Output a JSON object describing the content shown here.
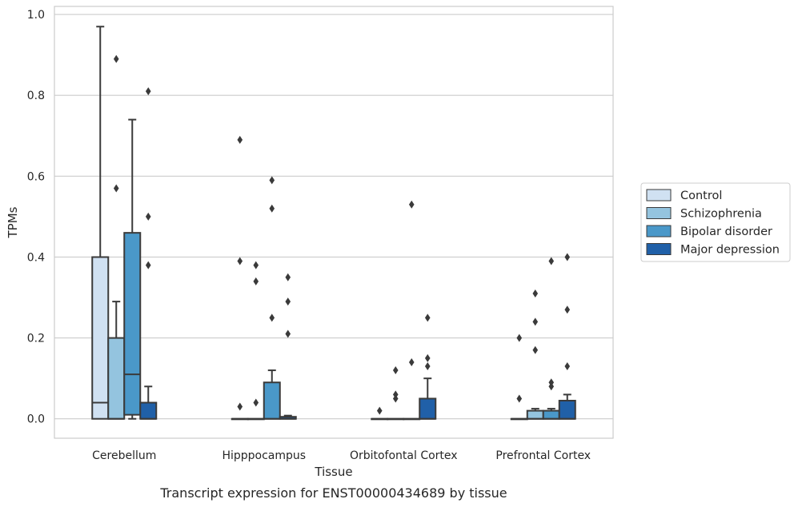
{
  "chart_data": {
    "type": "box",
    "title": "",
    "caption": "Transcript expression for ENST00000434689 by tissue",
    "xlabel": "Tissue",
    "ylabel": "TPMs",
    "ylim": [
      -0.048,
      1.02
    ],
    "yticks": [
      0.0,
      0.2,
      0.4,
      0.6,
      0.8,
      1.0
    ],
    "ytick_labels": [
      "0.0",
      "0.2",
      "0.4",
      "0.6",
      "0.8",
      "1.0"
    ],
    "grid": true,
    "legend_position": "right",
    "categories": [
      "Cerebellum",
      "Hipppocampus",
      "Orbitofontal Cortex",
      "Prefrontal Cortex"
    ],
    "series": [
      {
        "name": "Control",
        "color": "#d0e1f2",
        "boxes": [
          {
            "q1": 0.0,
            "median": 0.04,
            "q3": 0.4,
            "whisker_low": 0.0,
            "whisker_high": 0.97,
            "outliers": []
          },
          {
            "q1": 0.0,
            "median": 0.0,
            "q3": 0.0,
            "whisker_low": 0.0,
            "whisker_high": 0.0,
            "outliers": [
              0.03,
              0.39,
              0.69
            ]
          },
          {
            "q1": 0.0,
            "median": 0.0,
            "q3": 0.0,
            "whisker_low": 0.0,
            "whisker_high": 0.0,
            "outliers": [
              0.02
            ]
          },
          {
            "q1": 0.0,
            "median": 0.0,
            "q3": 0.0,
            "whisker_low": 0.0,
            "whisker_high": 0.0,
            "outliers": [
              0.05,
              0.2
            ]
          }
        ]
      },
      {
        "name": "Schizophrenia",
        "color": "#94c4df",
        "boxes": [
          {
            "q1": 0.0,
            "median": 0.0,
            "q3": 0.2,
            "whisker_low": 0.0,
            "whisker_high": 0.29,
            "outliers": [
              0.57,
              0.89
            ]
          },
          {
            "q1": 0.0,
            "median": 0.0,
            "q3": 0.0,
            "whisker_low": 0.0,
            "whisker_high": 0.0,
            "outliers": [
              0.04,
              0.34,
              0.38
            ]
          },
          {
            "q1": 0.0,
            "median": 0.0,
            "q3": 0.0,
            "whisker_low": 0.0,
            "whisker_high": 0.0,
            "outliers": [
              0.05,
              0.06,
              0.12
            ]
          },
          {
            "q1": 0.0,
            "median": 0.0,
            "q3": 0.02,
            "whisker_low": 0.0,
            "whisker_high": 0.025,
            "outliers": [
              0.17,
              0.24,
              0.31
            ]
          }
        ]
      },
      {
        "name": "Bipolar disorder",
        "color": "#4a98c9",
        "boxes": [
          {
            "q1": 0.01,
            "median": 0.11,
            "q3": 0.46,
            "whisker_low": 0.0,
            "whisker_high": 0.74,
            "outliers": []
          },
          {
            "q1": 0.0,
            "median": 0.0,
            "q3": 0.09,
            "whisker_low": 0.0,
            "whisker_high": 0.12,
            "outliers": [
              0.25,
              0.52,
              0.59
            ]
          },
          {
            "q1": 0.0,
            "median": 0.0,
            "q3": 0.0,
            "whisker_low": 0.0,
            "whisker_high": 0.0,
            "outliers": [
              0.14,
              0.53
            ]
          },
          {
            "q1": 0.0,
            "median": 0.0,
            "q3": 0.02,
            "whisker_low": 0.0,
            "whisker_high": 0.025,
            "outliers": [
              0.08,
              0.09,
              0.39
            ]
          }
        ]
      },
      {
        "name": "Major depression",
        "color": "#2060a8",
        "boxes": [
          {
            "q1": 0.0,
            "median": 0.0,
            "q3": 0.04,
            "whisker_low": 0.0,
            "whisker_high": 0.08,
            "outliers": [
              0.38,
              0.5,
              0.81
            ]
          },
          {
            "q1": 0.0,
            "median": 0.0,
            "q3": 0.005,
            "whisker_low": 0.0,
            "whisker_high": 0.008,
            "outliers": [
              0.21,
              0.29,
              0.35
            ]
          },
          {
            "q1": 0.0,
            "median": 0.0,
            "q3": 0.05,
            "whisker_low": 0.0,
            "whisker_high": 0.1,
            "outliers": [
              0.13,
              0.15,
              0.25
            ]
          },
          {
            "q1": 0.0,
            "median": 0.0,
            "q3": 0.045,
            "whisker_low": 0.0,
            "whisker_high": 0.06,
            "outliers": [
              0.13,
              0.27,
              0.4
            ]
          }
        ]
      }
    ]
  }
}
